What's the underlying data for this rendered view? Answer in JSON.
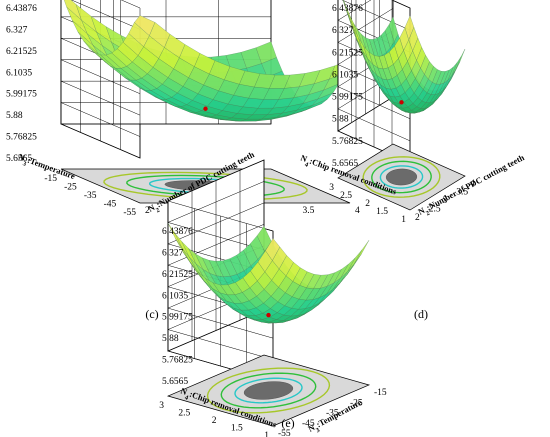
{
  "colors": {
    "surface_low": "#1f9a3a",
    "surface_mid": "#27d08f",
    "surface_high": "#c9f23a",
    "surface_top": "#f7e46a",
    "mesh": "#4a7d55",
    "floor": "#d9d9d9",
    "contour_low": "#28c7c7",
    "contour_mid": "#2fbf3a",
    "contour_high": "#a7c72a",
    "contour_fill": "#6b6b6b",
    "grid": "#000000",
    "point": "#cc0000"
  },
  "chart_data": [
    {
      "type": "surface",
      "panel_label": "(c)",
      "z_axis": {
        "ticks": [
          "5.6565",
          "5.76825",
          "5.88",
          "5.99175",
          "6.1035",
          "6.21525",
          "6.327",
          "6.43876"
        ]
      },
      "x_axis": {
        "label": "N2:Number of PDC cutting teeth",
        "label_parts": [
          "N",
          "2",
          ":Number of PDC cutting teeth"
        ],
        "ticks": [
          "2",
          "2.5",
          "3",
          "3.5",
          "4"
        ]
      },
      "y_axis": {
        "label": "N3:Temperature",
        "label_parts": [
          "N",
          "3",
          ":Temperature"
        ],
        "ticks": [
          "-55",
          "-45",
          "-35",
          "-25",
          "-15"
        ]
      },
      "z_range": [
        5.6565,
        6.43876
      ]
    },
    {
      "type": "surface",
      "panel_label": "(d)",
      "z_axis": {
        "ticks": [
          "5.6565",
          "5.76825",
          "5.88",
          "5.99175",
          "6.1035",
          "6.21525",
          "6.327",
          "6.43876"
        ]
      },
      "x_axis": {
        "label": "N2:Number of PDC cutting teeth",
        "label_parts": [
          "N",
          "2",
          ":Number of PDC cutting teeth"
        ],
        "ticks": [
          "2",
          "2.5",
          "3",
          "3.5",
          "4"
        ]
      },
      "y_axis": {
        "label": "N4:Chip removal conditions",
        "label_parts": [
          "N",
          "4",
          ":Chip removal conditions"
        ],
        "ticks": [
          "1",
          "1.5",
          "2",
          "2.5",
          "3"
        ]
      },
      "z_range": [
        5.6565,
        6.43876
      ]
    },
    {
      "type": "surface",
      "panel_label": "(e)",
      "z_axis": {
        "ticks": [
          "5.6565",
          "5.76825",
          "5.88",
          "5.99175",
          "6.1035",
          "6.21525",
          "6.327",
          "6.43876"
        ]
      },
      "x_axis": {
        "label": "N3:Temperature",
        "label_parts": [
          "N",
          "3",
          ":Temperature"
        ],
        "ticks": [
          "-55",
          "-45",
          "-35",
          "-25",
          "-15"
        ]
      },
      "y_axis": {
        "label": "N4:Chip removal conditions",
        "label_parts": [
          "N",
          "4",
          ":Chip removal conditions"
        ],
        "ticks": [
          "1",
          "1.5",
          "2",
          "2.5",
          "3"
        ]
      },
      "z_range": [
        5.6565,
        6.43876
      ]
    }
  ]
}
